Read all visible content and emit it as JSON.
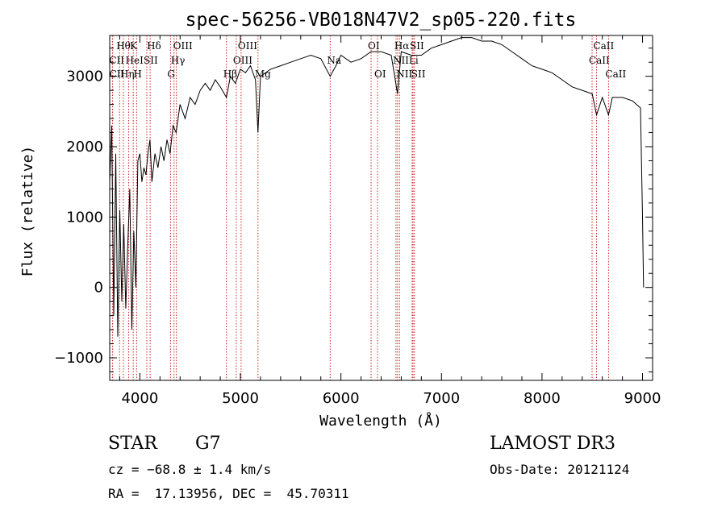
{
  "chart_data": {
    "type": "line",
    "title": "spec-56256-VB018N47V2_sp05-220.fits",
    "xlabel": "Wavelength (Å)",
    "ylabel": "Flux (relative)",
    "xlim": [
      3700,
      9100
    ],
    "ylim": [
      -1320,
      3580
    ],
    "x_ticks": [
      4000,
      5000,
      6000,
      7000,
      8000,
      9000
    ],
    "x_tick_labels": [
      "4000",
      "5000",
      "6000",
      "7000",
      "8000",
      "9000"
    ],
    "y_ticks": [
      -1000,
      0,
      1000,
      2000,
      3000
    ],
    "y_tick_labels": [
      "−1000",
      "0",
      "1000",
      "2000",
      "3000"
    ],
    "spectrum": {
      "x": [
        3700,
        3720,
        3740,
        3760,
        3780,
        3800,
        3820,
        3840,
        3860,
        3880,
        3900,
        3920,
        3940,
        3960,
        3980,
        4000,
        4020,
        4040,
        4060,
        4080,
        4100,
        4120,
        4150,
        4180,
        4210,
        4240,
        4270,
        4300,
        4330,
        4360,
        4400,
        4450,
        4500,
        4550,
        4600,
        4650,
        4700,
        4750,
        4800,
        4861,
        4900,
        4950,
        5000,
        5050,
        5100,
        5150,
        5175,
        5200,
        5250,
        5300,
        5400,
        5500,
        5600,
        5700,
        5800,
        5893,
        5950,
        6000,
        6100,
        6200,
        6300,
        6400,
        6500,
        6563,
        6600,
        6700,
        6800,
        6900,
        7000,
        7100,
        7200,
        7300,
        7400,
        7500,
        7600,
        7700,
        7800,
        7900,
        8000,
        8100,
        8200,
        8300,
        8400,
        8500,
        8542,
        8600,
        8662,
        8700,
        8800,
        8900,
        8980,
        9000,
        9010
      ],
      "y": [
        1500,
        2300,
        -400,
        1900,
        -700,
        1100,
        -200,
        900,
        -300,
        600,
        1400,
        -600,
        800,
        0,
        1800,
        1900,
        1500,
        1700,
        1600,
        1900,
        2100,
        1500,
        1900,
        1700,
        2000,
        1800,
        2100,
        1900,
        2300,
        2200,
        2600,
        2400,
        2700,
        2600,
        2800,
        2900,
        2800,
        2950,
        2850,
        2700,
        3000,
        2900,
        3100,
        3050,
        3150,
        2950,
        2200,
        3000,
        3050,
        3100,
        3150,
        3200,
        3250,
        3300,
        3250,
        3000,
        3150,
        3300,
        3200,
        3250,
        3350,
        3350,
        3300,
        2750,
        3350,
        3300,
        3300,
        3400,
        3450,
        3500,
        3550,
        3550,
        3500,
        3500,
        3450,
        3350,
        3250,
        3150,
        3100,
        3050,
        2950,
        2850,
        2800,
        2750,
        2450,
        2700,
        2450,
        2700,
        2700,
        2650,
        2550,
        1000,
        0
      ]
    },
    "lines": [
      {
        "name": "Hθ",
        "wavelength": 3798,
        "label_row": 0
      },
      {
        "name": "CII",
        "wavelength": 3727,
        "label_row": 1
      },
      {
        "name": "CII",
        "wavelength": 3729,
        "label_row": 2
      },
      {
        "name": "HeI",
        "wavelength": 3889,
        "label_row": 1
      },
      {
        "name": "K",
        "wavelength": 3934,
        "label_row": 0
      },
      {
        "name": "Hη",
        "wavelength": 3836,
        "label_row": 2
      },
      {
        "name": "H",
        "wavelength": 3968,
        "label_row": 2
      },
      {
        "name": "SII",
        "wavelength": 4069,
        "label_row": 1
      },
      {
        "name": "Hδ",
        "wavelength": 4102,
        "label_row": 0
      },
      {
        "name": "OIII",
        "wavelength": 4363,
        "label_row": 0
      },
      {
        "name": "Hγ",
        "wavelength": 4340,
        "label_row": 1
      },
      {
        "name": "G",
        "wavelength": 4305,
        "label_row": 2
      },
      {
        "name": "OIII",
        "wavelength": 5007,
        "label_row": 0
      },
      {
        "name": "OIII",
        "wavelength": 4959,
        "label_row": 1
      },
      {
        "name": "Hβ",
        "wavelength": 4861,
        "label_row": 2
      },
      {
        "name": "Mg",
        "wavelength": 5175,
        "label_row": 2
      },
      {
        "name": "Na",
        "wavelength": 5893,
        "label_row": 1
      },
      {
        "name": "OI",
        "wavelength": 6300,
        "label_row": 0
      },
      {
        "name": "OI",
        "wavelength": 6364,
        "label_row": 2
      },
      {
        "name": "Hα",
        "wavelength": 6563,
        "label_row": 0
      },
      {
        "name": "SII",
        "wavelength": 6717,
        "label_row": 0
      },
      {
        "name": "NII",
        "wavelength": 6548,
        "label_row": 1
      },
      {
        "name": "Li",
        "wavelength": 6708,
        "label_row": 1
      },
      {
        "name": "NII",
        "wavelength": 6583,
        "label_row": 2
      },
      {
        "name": "SII",
        "wavelength": 6731,
        "label_row": 2
      },
      {
        "name": "CaII",
        "wavelength": 8542,
        "label_row": 0
      },
      {
        "name": "CaII",
        "wavelength": 8498,
        "label_row": 1
      },
      {
        "name": "CaII",
        "wavelength": 8662,
        "label_row": 2
      }
    ]
  },
  "info": {
    "class": "STAR",
    "subclass": "G7",
    "survey": "LAMOST DR3",
    "cz": "cz = −68.8 ± 1.4 km/s",
    "obs_date": "Obs-Date: 20121124",
    "coords": "RA =  17.13956, DEC =  45.70311"
  }
}
